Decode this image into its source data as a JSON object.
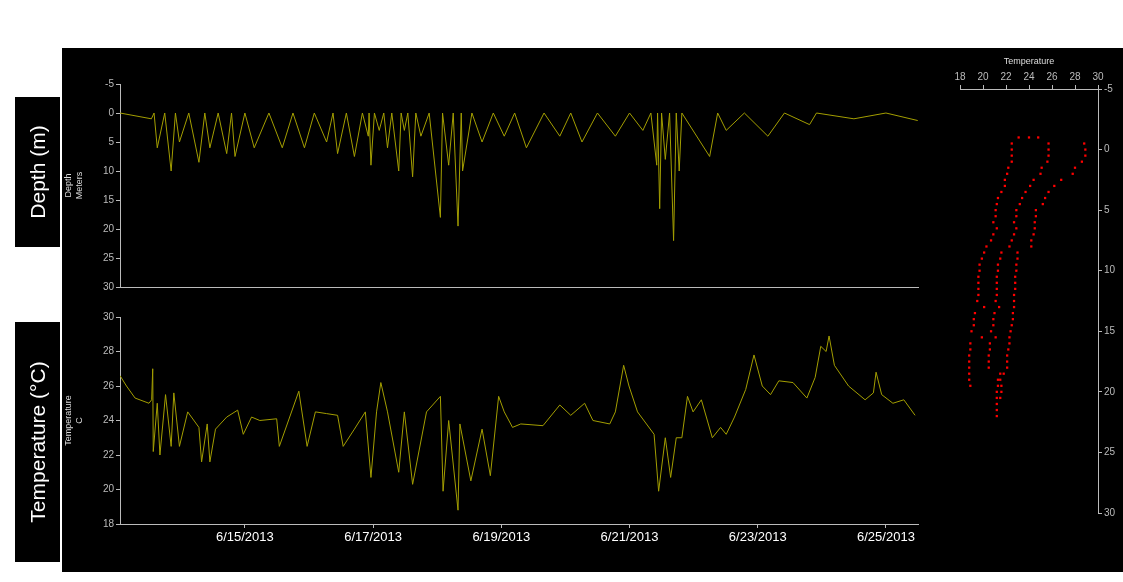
{
  "chart_data": [
    {
      "type": "line",
      "ylabel": "Depth Meters",
      "annotations": [
        "Depth (m)"
      ],
      "color": "#a39e00",
      "tick_labels": "y",
      "xlim": [
        "2013-06-13T01:15",
        "2013-06-25T12:00"
      ],
      "ylim": [
        30,
        -5
      ],
      "yticks": [
        -5,
        0,
        5,
        10,
        15,
        20,
        25,
        30
      ],
      "x": [
        "2013-06-13T01:15",
        "2013-06-13T13:00",
        "2013-06-13T14:00",
        "2013-06-13T15:12",
        "2013-06-13T18:00",
        "2013-06-13T20:24",
        "2013-06-13T22:00",
        "2013-06-13T23:30",
        "2013-06-14T03:00",
        "2013-06-14T06:48",
        "2013-06-14T09:00",
        "2013-06-14T10:54",
        "2013-06-14T14:00",
        "2013-06-14T17:12",
        "2013-06-14T19:00",
        "2013-06-14T20:18",
        "2013-06-15T00:00",
        "2013-06-15T03:30",
        "2013-06-15T09:00",
        "2013-06-15T14:00",
        "2013-06-15T18:00",
        "2013-06-15T22:18",
        "2013-06-16T02:00",
        "2013-06-16T06:36",
        "2013-06-16T09:00",
        "2013-06-16T10:42",
        "2013-06-16T14:00",
        "2013-06-16T17:00",
        "2013-06-16T20:00",
        "2013-06-16T22:12",
        "2013-06-16T22:30",
        "2013-06-16T23:12",
        "2013-06-17T00:30",
        "2013-06-17T02:18",
        "2013-06-17T04:00",
        "2013-06-17T05:24",
        "2013-06-17T07:00",
        "2013-06-17T09:36",
        "2013-06-17T10:30",
        "2013-06-17T11:42",
        "2013-06-17T13:00",
        "2013-06-17T14:48",
        "2013-06-17T16:00",
        "2013-06-17T17:54",
        "2013-06-17T21:00",
        "2013-06-18T01:12",
        "2013-06-18T02:00",
        "2013-06-18T04:18",
        "2013-06-18T06:00",
        "2013-06-18T07:48",
        "2013-06-18T09:00",
        "2013-06-18T09:30",
        "2013-06-18T13:00",
        "2013-06-18T16:48",
        "2013-06-18T21:00",
        "2013-06-19T01:06",
        "2013-06-19T05:00",
        "2013-06-19T09:24",
        "2013-06-19T16:00",
        "2013-06-19T21:54",
        "2013-06-20T02:00",
        "2013-06-20T06:12",
        "2013-06-20T12:00",
        "2013-06-20T18:42",
        "2013-06-21T00:00",
        "2013-06-21T05:00",
        "2013-06-21T08:00",
        "2013-06-21T10:12",
        "2013-06-21T10:30",
        "2013-06-21T11:18",
        "2013-06-21T12:00",
        "2013-06-21T13:24",
        "2013-06-21T15:00",
        "2013-06-21T16:30",
        "2013-06-21T17:30",
        "2013-06-21T18:36",
        "2013-06-21T19:36",
        "2013-06-22T06:00",
        "2013-06-22T09:00",
        "2013-06-22T12:12",
        "2013-06-22T19:00",
        "2013-06-23T03:48",
        "2013-06-23T10:00",
        "2013-06-23T19:24",
        "2013-06-23T22:00",
        "2013-06-24T12:00",
        "2013-06-25T00:00",
        "2013-06-25T11:54"
      ],
      "values": [
        0,
        1,
        0,
        6,
        0,
        10,
        0,
        5,
        0,
        8.5,
        0,
        6,
        0,
        7,
        0,
        7.5,
        0,
        6,
        0,
        6,
        0,
        6,
        0,
        5,
        0,
        7,
        0,
        7.5,
        0,
        4,
        0,
        9,
        0,
        3,
        0,
        6,
        0,
        10,
        0,
        3,
        0,
        11,
        0,
        4,
        0,
        18,
        0,
        9,
        0,
        19.5,
        0,
        10,
        0,
        5,
        0,
        4,
        0,
        6,
        0,
        4,
        0,
        5,
        0,
        4,
        0,
        3,
        0,
        9,
        0,
        16.5,
        0,
        8,
        0,
        22,
        0,
        10,
        0,
        7.5,
        0,
        3,
        0,
        4,
        0,
        2,
        0,
        1,
        0,
        1.3
      ]
    },
    {
      "type": "line",
      "ylabel": "Temperature C",
      "annotations": [
        "Temperature (°C)"
      ],
      "color": "#a39e00",
      "xlim": [
        "2013-06-13T01:15",
        "2013-06-25T12:00"
      ],
      "xticks": [
        {
          "value": "2013-06-15",
          "label": "6/15/2013"
        },
        {
          "value": "2013-06-17",
          "label": "6/17/2013"
        },
        {
          "value": "2013-06-19",
          "label": "6/19/2013"
        },
        {
          "value": "2013-06-21",
          "label": "6/21/2013"
        },
        {
          "value": "2013-06-23",
          "label": "6/23/2013"
        },
        {
          "value": "2013-06-25",
          "label": "6/25/2013"
        }
      ],
      "ylim": [
        18,
        30
      ],
      "yticks": [
        18,
        20,
        22,
        24,
        26,
        28,
        30
      ],
      "x": [
        "2013-06-13T01:15",
        "2013-06-13T03:40",
        "2013-06-13T06:54",
        "2013-06-13T12:06",
        "2013-06-13T13:06",
        "2013-06-13T13:30",
        "2013-06-13T13:42",
        "2013-06-13T15:12",
        "2013-06-13T16:12",
        "2013-06-13T18:18",
        "2013-06-13T20:24",
        "2013-06-13T21:24",
        "2013-06-13T23:30",
        "2013-06-14T02:36",
        "2013-06-14T06:48",
        "2013-06-14T07:48",
        "2013-06-14T09:54",
        "2013-06-14T10:54",
        "2013-06-14T13:00",
        "2013-06-14T17:12",
        "2013-06-14T21:18",
        "2013-06-14T23:24",
        "2013-06-15T02:30",
        "2013-06-15T05:36",
        "2013-06-15T11:54",
        "2013-06-15T12:54",
        "2013-06-15T20:12",
        "2013-06-15T23:18",
        "2013-06-16T02:24",
        "2013-06-16T06:36",
        "2013-06-16T10:42",
        "2013-06-16T12:48",
        "2013-06-16T17:00",
        "2013-06-16T21:06",
        "2013-06-16T23:12",
        "2013-06-17T01:18",
        "2013-06-17T02:54",
        "2013-06-17T05:24",
        "2013-06-17T09:36",
        "2013-06-17T11:42",
        "2013-06-17T14:48",
        "2013-06-17T20:00",
        "2013-06-18T01:12",
        "2013-06-18T02:12",
        "2013-06-18T04:18",
        "2013-06-18T07:48",
        "2013-06-18T08:30",
        "2013-06-18T12:36",
        "2013-06-18T16:48",
        "2013-06-18T19:54",
        "2013-06-18T23:00",
        "2013-06-19T01:06",
        "2013-06-19T04:12",
        "2013-06-19T07:18",
        "2013-06-19T15:36",
        "2013-06-19T21:54",
        "2013-06-20T02:00",
        "2013-06-20T07:12",
        "2013-06-20T10:18",
        "2013-06-20T16:36",
        "2013-06-20T18:42",
        "2013-06-20T21:48",
        "2013-06-20T23:48",
        "2013-06-21T03:00",
        "2013-06-21T09:12",
        "2013-06-21T10:54",
        "2013-06-21T13:24",
        "2013-06-21T15:24",
        "2013-06-21T17:30",
        "2013-06-21T19:36",
        "2013-06-21T21:42",
        "2013-06-21T23:48",
        "2013-06-22T02:54",
        "2013-06-22T07:00",
        "2013-06-22T10:06",
        "2013-06-22T12:12",
        "2013-06-22T15:18",
        "2013-06-22T19:30",
        "2013-06-22T22:36",
        "2013-06-23T01:42",
        "2013-06-23T04:48",
        "2013-06-23T07:54",
        "2013-06-23T13:12",
        "2013-06-23T18:24",
        "2013-06-23T21:30",
        "2013-06-23T23:36",
        "2013-06-24T01:36",
        "2013-06-24T02:42",
        "2013-06-24T04:42",
        "2013-06-24T10:00",
        "2013-06-24T16:12",
        "2013-06-24T19:18",
        "2013-06-24T20:18",
        "2013-06-24T22:24",
        "2013-06-25T02:36",
        "2013-06-25T06:42",
        "2013-06-25T10:54"
      ],
      "values": [
        26.6,
        26.0,
        25.3,
        25.0,
        25.2,
        27.0,
        22.2,
        25.0,
        22.0,
        25.5,
        22.5,
        25.6,
        22.5,
        24.5,
        23.6,
        21.6,
        23.8,
        21.6,
        23.5,
        24.2,
        24.6,
        23.2,
        24.2,
        24.0,
        24.1,
        22.5,
        25.7,
        22.5,
        24.5,
        24.4,
        24.3,
        22.5,
        23.5,
        24.5,
        20.7,
        24.5,
        26.2,
        24.5,
        21.0,
        24.5,
        20.3,
        24.5,
        25.4,
        19.9,
        24.0,
        18.8,
        23.8,
        20.5,
        23.5,
        20.8,
        25.4,
        24.5,
        23.6,
        23.8,
        23.7,
        24.9,
        24.3,
        25.0,
        24.0,
        23.8,
        24.5,
        27.2,
        26.0,
        24.5,
        23.2,
        19.9,
        23.0,
        20.7,
        23.0,
        23.0,
        25.4,
        24.5,
        25.2,
        23.0,
        23.6,
        23.2,
        24.2,
        25.8,
        27.8,
        26.0,
        25.5,
        26.3,
        26.2,
        25.3,
        26.5,
        28.3,
        28.0,
        28.9,
        27.2,
        26.0,
        25.2,
        25.6,
        26.8,
        25.5,
        25.0,
        25.2,
        24.3
      ]
    },
    {
      "type": "scatter",
      "xlabel": "Temperature",
      "marker": "square",
      "xlim": [
        18,
        30
      ],
      "xticks": [
        18,
        20,
        22,
        24,
        26,
        28,
        30
      ],
      "ylim": [
        30,
        -5
      ],
      "yticks": [
        -5,
        0,
        5,
        10,
        15,
        20,
        25,
        30
      ],
      "series": [
        {
          "color": "#ff0000",
          "x": [
            23.1,
            24.0,
            24.8,
            22.5,
            25.7,
            28.8,
            22.5,
            25.7,
            28.9,
            22.5,
            25.7,
            28.9,
            22.5,
            25.6,
            28.6,
            22.2,
            25.1,
            28.0,
            22.1,
            25.0,
            27.8,
            21.9,
            24.4,
            26.8,
            21.9,
            24.1,
            26.2,
            21.6,
            23.7,
            25.7,
            21.3,
            23.4,
            25.4,
            21.2,
            23.2,
            25.2,
            21.1,
            22.9,
            24.6,
            21.1,
            22.9,
            24.6,
            20.9,
            22.7,
            24.5,
            21.2,
            22.9,
            24.5,
            20.9,
            22.7,
            24.4,
            20.7,
            22.5,
            24.2,
            20.3,
            22.3,
            24.2,
            20.1,
            21.6,
            23.0,
            19.9,
            21.5,
            23.0,
            19.7,
            21.3,
            22.9,
            19.7,
            21.3,
            22.9,
            19.6,
            21.2,
            22.8,
            19.6,
            21.2,
            22.8,
            19.6,
            21.2,
            22.8,
            19.6,
            21.2,
            22.7,
            19.5,
            21.1,
            22.7,
            20.1,
            21.4,
            22.7,
            19.3,
            21.0,
            22.6,
            19.2,
            20.9,
            22.6,
            19.2,
            20.9,
            22.5,
            19.0,
            20.7,
            22.4,
            19.9,
            21.1,
            22.3,
            18.9,
            20.6,
            22.3,
            18.9,
            20.6,
            22.2,
            18.8,
            20.5,
            22.1,
            18.8,
            20.5,
            22.1,
            18.8,
            20.5,
            22.1,
            18.8,
            21.5,
            21.8,
            18.8,
            21.3,
            21.5,
            18.9,
            21.3,
            21.6,
            21.2,
            21.6,
            21.2,
            21.5,
            21.2,
            21.2,
            21.2
          ],
          "values": [
            -1,
            -1,
            -1,
            -0.5,
            -0.5,
            -0.5,
            0,
            0,
            0,
            0.5,
            0.5,
            0.5,
            1,
            1,
            1,
            1.5,
            1.5,
            1.5,
            2,
            2,
            2,
            2.5,
            2.5,
            2.5,
            3,
            3,
            3,
            3.5,
            3.5,
            3.5,
            4,
            4,
            4,
            4.5,
            4.5,
            4.5,
            5,
            5,
            5,
            5.5,
            5.5,
            5.5,
            6,
            6,
            6,
            6.5,
            6.5,
            6.5,
            7,
            7,
            7,
            7.5,
            7.5,
            7.5,
            8,
            8,
            8,
            8.5,
            8.5,
            8.5,
            9,
            9,
            9,
            9.5,
            9.5,
            9.5,
            10,
            10,
            10,
            10.5,
            10.5,
            10.5,
            11,
            11,
            11,
            11.5,
            11.5,
            11.5,
            12,
            12,
            12,
            12.5,
            12.5,
            12.5,
            13,
            13,
            13,
            13.5,
            13.5,
            13.5,
            14,
            14,
            14,
            14.5,
            14.5,
            14.5,
            15,
            15,
            15,
            15.5,
            15.5,
            15.5,
            16,
            16,
            16,
            16.5,
            16.5,
            16.5,
            17,
            17,
            17,
            17.5,
            17.5,
            17.5,
            18,
            18,
            18,
            18.5,
            18.5,
            18.5,
            19,
            19,
            19,
            19.5,
            19.5,
            19.5,
            20,
            20,
            20.5,
            20.5,
            21,
            21.5,
            22
          ]
        }
      ]
    }
  ]
}
